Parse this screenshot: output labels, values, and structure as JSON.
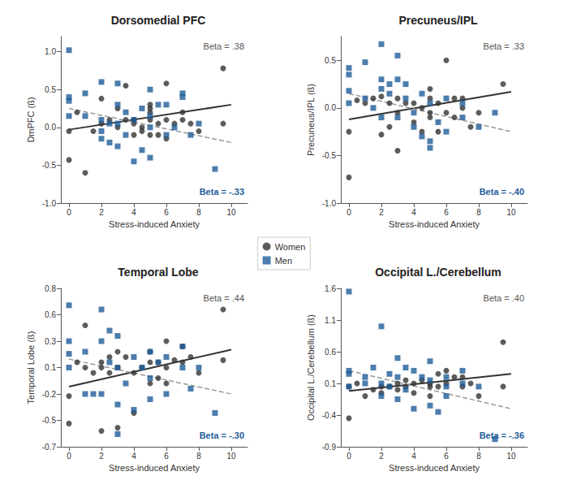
{
  "chart_data": [
    {
      "type": "scatter",
      "title": "Dorsomedial PFC",
      "x_label": "Stress-induced Anxiety",
      "y_label": "DmPFC (ß)",
      "xlim": [
        -0.5,
        11
      ],
      "xticks": [
        0,
        2,
        4,
        6,
        8,
        10
      ],
      "ylim": [
        -1.0,
        1.2
      ],
      "yticks": [
        {
          "value": -1.0,
          "label": "-1.0"
        },
        -0.5,
        {
          "value": 0.0,
          "label": "0.0"
        },
        0.5,
        {
          "value": 1.0,
          "label": "1.0"
        }
      ],
      "grid": false,
      "legend": "center",
      "annotations": [
        {
          "text": "Beta = .38",
          "color": "#555555"
        },
        {
          "text": "Beta = -.33",
          "color": "#1f5c99"
        }
      ],
      "series": [
        {
          "name": "Women",
          "color": "#333333",
          "marker": "circle",
          "x": [
            0,
            0,
            0.5,
            1,
            1.5,
            2,
            2,
            2.5,
            3,
            3,
            3.5,
            3.5,
            4,
            4,
            4.5,
            4.5,
            5,
            5,
            5,
            5,
            5.5,
            5.5,
            6,
            6,
            6.5,
            7,
            7,
            7.5,
            8,
            9.5,
            9.5,
            5,
            4,
            6
          ],
          "values": [
            -0.05,
            -0.43,
            0.2,
            -0.6,
            -0.05,
            0.38,
            0.05,
            0.1,
            0.25,
            0,
            0.1,
            0.55,
            0.05,
            0.1,
            -0.05,
            0,
            0.3,
            0.2,
            0.1,
            -0.1,
            0.05,
            -0.1,
            0.58,
            0.1,
            0.05,
            0.2,
            0.1,
            0.05,
            -0.05,
            0.78,
            0.05,
            0.25,
            -0.1,
            -0.15
          ],
          "fit": {
            "x": [
              0,
              10
            ],
            "values": [
              -0.03,
              0.3
            ],
            "line_style": "solid",
            "color": "#333333"
          }
        },
        {
          "name": "Men",
          "color": "#1f5c99",
          "marker": "square",
          "x": [
            0,
            0,
            0,
            0,
            1,
            1,
            2,
            2,
            2,
            2.5,
            2.5,
            3,
            3,
            3,
            3,
            3.5,
            3.5,
            4,
            4,
            4.5,
            4.5,
            5,
            5,
            5,
            5.5,
            6,
            6,
            7,
            7,
            7.5,
            8,
            9,
            5,
            2,
            6.5
          ],
          "values": [
            1.02,
            0.4,
            0.35,
            0.15,
            0.45,
            0.15,
            0.6,
            0.1,
            -0.15,
            0.05,
            -0.2,
            0.58,
            0.3,
            0.05,
            -0.25,
            0.2,
            -0.1,
            -0.45,
            0.1,
            0.25,
            -0.3,
            0.5,
            0.15,
            -0.4,
            0.3,
            0.3,
            -0.1,
            0.45,
            0.4,
            -0.1,
            0.05,
            -0.55,
            0,
            -0.05,
            0
          ],
          "fit": {
            "x": [
              0,
              10
            ],
            "values": [
              0.25,
              -0.2
            ],
            "line_style": "dashed",
            "color": "#999999"
          }
        }
      ]
    },
    {
      "type": "scatter",
      "title": "Precuneus/IPL",
      "x_label": "Stress-induced Anxiety",
      "y_label": "Precuneus/IPL (ß)",
      "xlim": [
        -0.5,
        11
      ],
      "xticks": [
        0,
        2,
        4,
        6,
        8,
        10
      ],
      "ylim": [
        -1.0,
        0.75
      ],
      "yticks": [
        {
          "value": -1.0,
          "label": "-1.0"
        },
        -0.5,
        {
          "value": 0.0,
          "label": "0.0"
        },
        0.5
      ],
      "grid": false,
      "legend": "center",
      "annotations": [
        {
          "text": "Beta = .33",
          "color": "#555555"
        },
        {
          "text": "Beta = -.40",
          "color": "#1f5c99"
        }
      ],
      "series": [
        {
          "name": "Women",
          "color": "#333333",
          "marker": "circle",
          "x": [
            0,
            0,
            0.5,
            1,
            1.5,
            2,
            2,
            2.5,
            2.5,
            3,
            3,
            3,
            3.5,
            4,
            4,
            4.5,
            5,
            5,
            5,
            5,
            5.5,
            5.5,
            6,
            6,
            6.5,
            6.5,
            7,
            7,
            7.5,
            8,
            9.5,
            4.5
          ],
          "values": [
            -0.25,
            -0.73,
            0.08,
            0.05,
            0.1,
            -0.28,
            0.12,
            0.05,
            -0.2,
            0.1,
            -0.45,
            -0.05,
            0.05,
            0.05,
            -0.15,
            0,
            0.2,
            0.1,
            -0.05,
            -0.1,
            -0.25,
            0.05,
            0.5,
            -0.05,
            0.1,
            -0.1,
            0.1,
            0,
            -0.2,
            -0.05,
            0.25,
            -0.25
          ],
          "fit": {
            "x": [
              0,
              10
            ],
            "values": [
              -0.12,
              0.17
            ],
            "line_style": "solid",
            "color": "#333333"
          }
        },
        {
          "name": "Men",
          "color": "#1f5c99",
          "marker": "square",
          "x": [
            0,
            0,
            0,
            0,
            1,
            1,
            1.5,
            2,
            2,
            2,
            2.5,
            2.5,
            3,
            3,
            3,
            3.5,
            3.5,
            4,
            4,
            4.5,
            4.5,
            5,
            5,
            5,
            5.5,
            6,
            6,
            7,
            7,
            8,
            9,
            2
          ],
          "values": [
            0.42,
            0.35,
            0.18,
            0.05,
            0.48,
            0.1,
            0,
            0.67,
            0.3,
            0.2,
            0.25,
            0.15,
            0.55,
            0.3,
            -0.1,
            0.25,
            0.1,
            -0.05,
            -0.2,
            0.15,
            -0.3,
            -0.42,
            -0.35,
            0.05,
            -0.15,
            0.1,
            -0.25,
            0.05,
            -0.1,
            -0.2,
            -0.05,
            -0.1
          ],
          "fit": {
            "x": [
              0,
              10
            ],
            "values": [
              0.15,
              -0.25
            ],
            "line_style": "dashed",
            "color": "#999999"
          }
        }
      ]
    },
    {
      "type": "scatter",
      "title": "Temporal Lobe",
      "x_label": "Stress-induced Anxiety",
      "y_label": "Temporal Lobe (ß)",
      "xlim": [
        -0.5,
        11
      ],
      "xticks": [
        0,
        2,
        4,
        6,
        8,
        10
      ],
      "ylim": [
        -0.7,
        0.8
      ],
      "yticks": [
        -0.7,
        {
          "value": -0.45,
          "label": "-0.5"
        },
        -0.2,
        {
          "value": 0.05,
          "label": "0.1"
        },
        0.3,
        {
          "value": 0.55,
          "label": "0.6"
        },
        0.8
      ],
      "grid": false,
      "legend": "center",
      "annotations": [
        {
          "text": "Beta = .44",
          "color": "#555555"
        },
        {
          "text": "Beta = -.30",
          "color": "#1f5c99"
        }
      ],
      "series": [
        {
          "name": "Women",
          "color": "#333333",
          "marker": "circle",
          "x": [
            0,
            0,
            0.5,
            1,
            1,
            1.5,
            2,
            2,
            2,
            2.5,
            2.5,
            3,
            3,
            3,
            3.5,
            4,
            4,
            4.5,
            5,
            5,
            5,
            5.5,
            5.5,
            6,
            6,
            6,
            6.5,
            7,
            7,
            7.5,
            8,
            9.5,
            9.5
          ],
          "values": [
            -0.22,
            -0.48,
            0.1,
            0.45,
            0.05,
            0,
            -0.55,
            0.05,
            0.1,
            0.15,
            0,
            -0.52,
            0.2,
            0.05,
            0.15,
            -0.38,
            0,
            0.05,
            0.2,
            0.1,
            -0.1,
            -0.05,
            0.1,
            0.3,
            0.05,
            -0.1,
            0.12,
            0.1,
            0.25,
            0.15,
            0,
            0.6,
            0.12
          ],
          "fit": {
            "x": [
              0,
              10
            ],
            "values": [
              -0.13,
              0.22
            ],
            "line_style": "solid",
            "color": "#333333"
          }
        },
        {
          "name": "Men",
          "color": "#1f5c99",
          "marker": "square",
          "x": [
            0,
            0,
            0,
            0,
            1,
            1,
            1.5,
            2,
            2,
            2,
            2.5,
            2.5,
            3,
            3,
            3,
            3,
            3.5,
            4,
            4,
            4.5,
            5,
            5,
            5,
            5.5,
            6,
            6,
            7,
            7,
            7.5,
            8,
            9
          ],
          "values": [
            0.64,
            0.3,
            0.18,
            0.05,
            0.2,
            -0.2,
            -0.2,
            0.6,
            0.3,
            -0.2,
            0.4,
            0.1,
            0.35,
            0.05,
            -0.58,
            -0.3,
            -0.1,
            0.15,
            -0.35,
            0.05,
            0.2,
            -0.25,
            -0.05,
            0.1,
            -0.2,
            0.15,
            0.25,
            0.05,
            -0.15,
            0.05,
            -0.38
          ],
          "fit": {
            "x": [
              0,
              10
            ],
            "values": [
              0.13,
              -0.2
            ],
            "line_style": "dashed",
            "color": "#999999"
          }
        }
      ]
    },
    {
      "type": "scatter",
      "title": "Occipital L./Cerebellum",
      "x_label": "Stress-induced Anxiety",
      "y_label": "Occipital L./Cerebellum (ß)",
      "xlim": [
        -0.5,
        11
      ],
      "xticks": [
        0,
        2,
        4,
        6,
        8,
        10
      ],
      "ylim": [
        -0.9,
        1.6
      ],
      "yticks": [
        -0.9,
        -0.4,
        0.1,
        0.6,
        1.1,
        1.6
      ],
      "grid": false,
      "legend": "center",
      "annotations": [
        {
          "text": "Beta = .40",
          "color": "#555555"
        },
        {
          "text": "Beta = -.36",
          "color": "#1f5c99"
        }
      ],
      "series": [
        {
          "name": "Women",
          "color": "#333333",
          "marker": "circle",
          "x": [
            0,
            0,
            0.5,
            1,
            1.5,
            2,
            2,
            2.5,
            3,
            3,
            3.5,
            3.5,
            4,
            4,
            4.5,
            5,
            5,
            5,
            5.5,
            5.5,
            6,
            6,
            6.5,
            7,
            7,
            7.5,
            8,
            9.5,
            9.5
          ],
          "values": [
            -0.45,
            0.05,
            0.1,
            -0.1,
            0,
            0.05,
            -0.05,
            0.05,
            0.1,
            0,
            0.15,
            0.05,
            0.1,
            -0.05,
            0.15,
            0.1,
            0.05,
            -0.1,
            0.25,
            0.05,
            0.3,
            0.1,
            0.2,
            0.2,
            0.05,
            0.1,
            -0.1,
            0.75,
            0.05
          ],
          "fit": {
            "x": [
              0,
              10
            ],
            "values": [
              -0.02,
              0.25
            ],
            "line_style": "solid",
            "color": "#333333"
          }
        },
        {
          "name": "Men",
          "color": "#1f5c99",
          "marker": "square",
          "x": [
            0,
            0,
            0,
            0,
            1,
            1,
            1.5,
            2,
            2,
            2,
            2.5,
            2.5,
            3,
            3,
            3,
            3.5,
            3.5,
            4,
            4,
            4.5,
            5,
            5,
            5,
            5.5,
            6,
            6,
            7,
            7,
            8,
            9,
            6
          ],
          "values": [
            1.55,
            0.3,
            0.25,
            0.05,
            0.2,
            0.1,
            0.35,
            1.0,
            0.1,
            -0.1,
            0.25,
            0.05,
            0.5,
            0.2,
            -0.15,
            0.35,
            0,
            0.3,
            -0.3,
            0.2,
            0.45,
            0.15,
            -0.25,
            -0.35,
            0.2,
            -0.1,
            0.3,
            0.1,
            0.05,
            -0.78,
            0.05
          ],
          "fit": {
            "x": [
              0,
              10
            ],
            "values": [
              0.3,
              -0.3
            ],
            "line_style": "dashed",
            "color": "#999999"
          }
        }
      ]
    }
  ]
}
